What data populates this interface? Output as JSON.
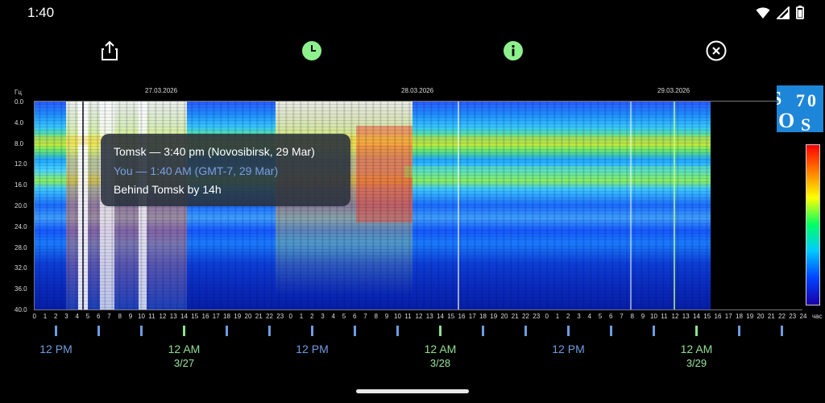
{
  "status_bar": {
    "time": "1:40"
  },
  "toolbar": {
    "share_icon": "share-icon",
    "clock_icon": "clock-icon",
    "info_icon": "info-icon",
    "close_icon": "close-circle-icon",
    "accent_green": "#8df08d"
  },
  "chart": {
    "y_unit": "Гц",
    "y_ticks": [
      "0.0",
      "4.0",
      "8.0",
      "12.0",
      "16.0",
      "20.0",
      "24.0",
      "28.0",
      "32.0",
      "36.0",
      "40.0"
    ],
    "x_ticks": [
      "0",
      "1",
      "2",
      "3",
      "4",
      "5",
      "6",
      "7",
      "8",
      "9",
      "10",
      "11",
      "12",
      "13",
      "14",
      "15",
      "16",
      "17",
      "18",
      "19",
      "20",
      "21",
      "22",
      "23",
      "0",
      "1",
      "2",
      "3",
      "4",
      "5",
      "6",
      "7",
      "8",
      "9",
      "10",
      "11",
      "12",
      "13",
      "14",
      "15",
      "16",
      "17",
      "18",
      "19",
      "20",
      "21",
      "22",
      "23",
      "0",
      "1",
      "2",
      "3",
      "4",
      "5",
      "6",
      "7",
      "8",
      "9",
      "10",
      "11",
      "12",
      "13",
      "14",
      "15",
      "16",
      "17",
      "18",
      "19",
      "20",
      "21",
      "22",
      "23",
      "24"
    ],
    "x_unit": "час",
    "dates": [
      "27.03.2026",
      "28.03.2026",
      "29.03.2026"
    ]
  },
  "logo": {
    "letters": [
      "S",
      "7",
      "0",
      "O",
      "S"
    ],
    "color": "#1e86d8"
  },
  "tooltip": {
    "line1": "Tomsk — 3:40 pm (Novosibirsk, 29 Mar)",
    "line2": "You — 1:40 AM (GMT-7, 29 Mar)",
    "line3": "Behind Tomsk by 14h"
  },
  "local_time_axis": {
    "labels": [
      {
        "time": "12 PM",
        "date": "",
        "color": "#6f9be0"
      },
      {
        "time": "12 AM",
        "date": "3/27",
        "color": "#8fe08f"
      },
      {
        "time": "12 PM",
        "date": "",
        "color": "#6f9be0"
      },
      {
        "time": "12 AM",
        "date": "3/28",
        "color": "#8fe08f"
      },
      {
        "time": "12 PM",
        "date": "",
        "color": "#6f9be0"
      },
      {
        "time": "12 AM",
        "date": "3/29",
        "color": "#8fe08f"
      }
    ]
  }
}
